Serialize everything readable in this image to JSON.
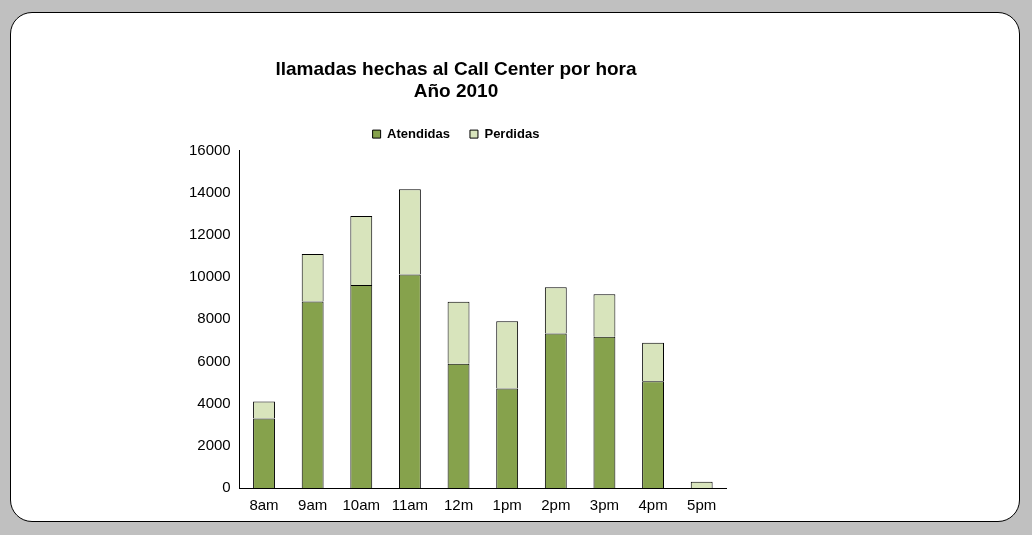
{
  "chart_data": {
    "type": "bar",
    "title": "llamadas hechas al Call Center por hora\nAño 2010",
    "categories": [
      "8am",
      "9am",
      "10am",
      "11am",
      "12m",
      "1pm",
      "2pm",
      "3pm",
      "4pm",
      "5pm"
    ],
    "stacked": true,
    "legend": "top",
    "grid": false,
    "ylim": [
      0,
      16000
    ],
    "yticks": [
      0,
      2000,
      4000,
      6000,
      8000,
      10000,
      12000,
      14000,
      16000
    ],
    "series": [
      {
        "name": "Atendidas",
        "color": "#86a24c",
        "values": [
          3300,
          8850,
          9630,
          10130,
          5890,
          4720,
          7330,
          7170,
          5060,
          0
        ]
      },
      {
        "name": "Perdidas",
        "color": "#d8e4bc",
        "values": [
          800,
          2250,
          3270,
          4040,
          2940,
          3190,
          2190,
          2020,
          1830,
          300
        ]
      }
    ]
  }
}
